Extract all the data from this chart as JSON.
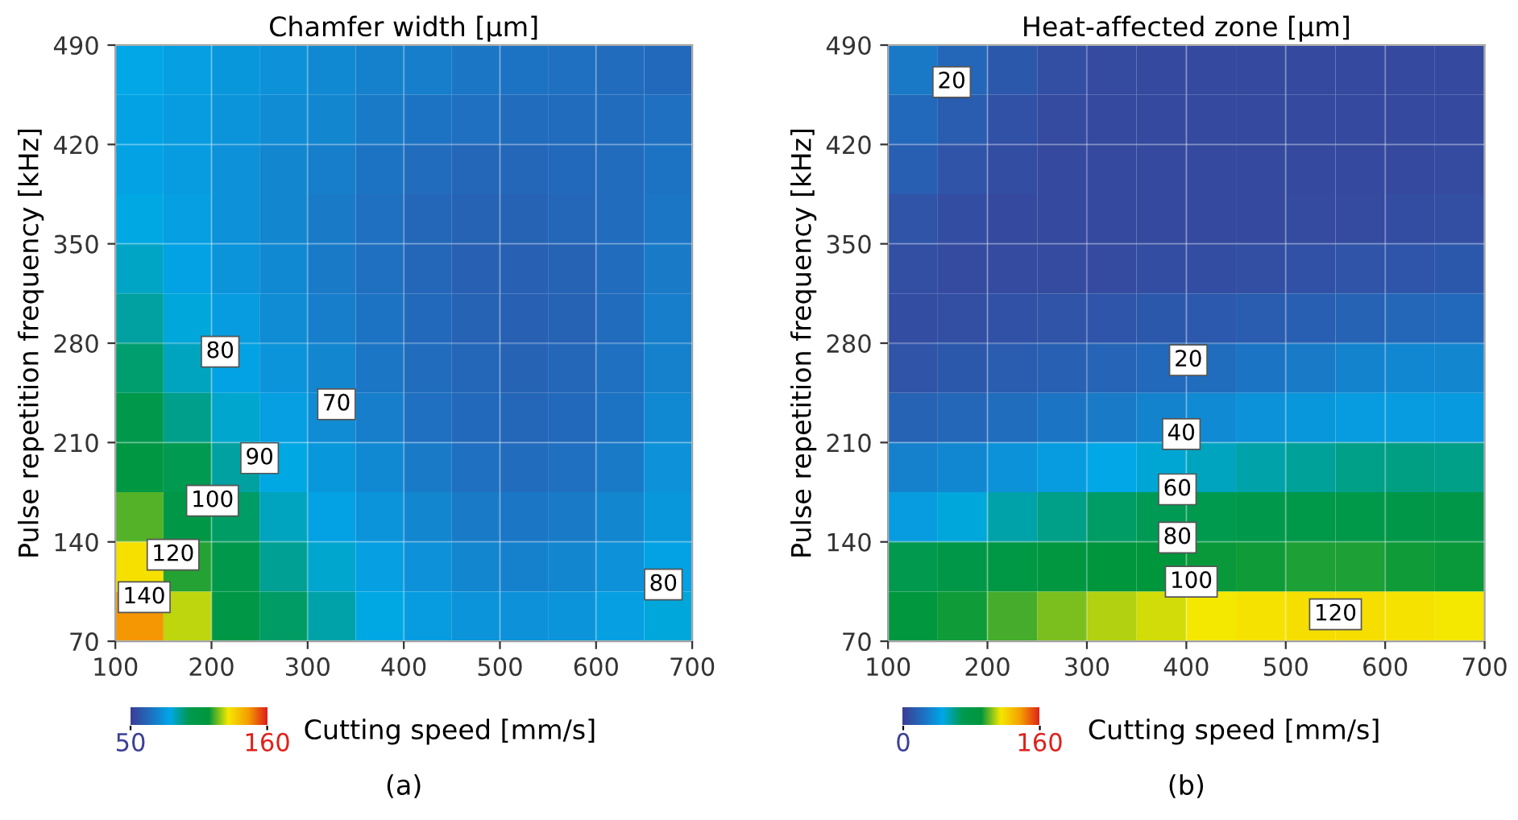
{
  "chart_data": [
    {
      "type": "heatmap",
      "title": "Chamfer width [µm]",
      "xlabel": "Cutting speed [mm/s]",
      "ylabel": "Pulse repetition frequency [kHz]",
      "xlim": [
        100,
        700
      ],
      "xticks": [
        100,
        200,
        300,
        400,
        500,
        600,
        700
      ],
      "ylim": [
        70,
        490
      ],
      "yticks": [
        70,
        140,
        210,
        280,
        350,
        420,
        490
      ],
      "grid": true,
      "clim": [
        50,
        160
      ],
      "cticks": [
        50,
        160
      ],
      "colors": [
        "#3b3f96",
        "#1f6fc0",
        "#00a8e8",
        "#009a50",
        "#00963c",
        "#f5e800",
        "#f5a000",
        "#e0201a"
      ],
      "cells": [
        [
          81,
          79,
          77,
          75,
          73,
          71,
          70,
          68,
          67,
          66,
          65,
          64
        ],
        [
          80,
          78,
          76,
          74,
          72,
          69,
          67,
          66,
          65,
          65,
          65,
          66
        ],
        [
          80,
          78,
          75,
          72,
          70,
          67,
          65,
          63,
          63,
          64,
          65,
          67
        ],
        [
          82,
          79,
          75,
          72,
          69,
          66,
          63,
          62,
          62,
          63,
          65,
          68
        ],
        [
          85,
          80,
          76,
          73,
          69,
          66,
          63,
          61,
          61,
          62,
          65,
          69
        ],
        [
          89,
          83,
          78,
          74,
          70,
          67,
          64,
          62,
          61,
          62,
          65,
          70
        ],
        [
          94,
          86,
          80,
          76,
          72,
          68,
          65,
          63,
          62,
          63,
          66,
          71
        ],
        [
          100,
          91,
          84,
          79,
          74,
          70,
          66,
          64,
          63,
          64,
          67,
          73
        ],
        [
          108,
          97,
          89,
          82,
          77,
          73,
          69,
          66,
          65,
          66,
          69,
          75
        ],
        [
          118,
          105,
          95,
          86,
          80,
          76,
          72,
          69,
          68,
          69,
          72,
          77
        ],
        [
          130,
          115,
          100,
          90,
          84,
          79,
          75,
          72,
          71,
          72,
          75,
          80
        ],
        [
          145,
          125,
          105,
          95,
          88,
          82,
          78,
          76,
          75,
          76,
          79,
          83
        ]
      ],
      "annotations": [
        "80",
        "70",
        "90",
        "100",
        "120",
        "140",
        "80",
        "(a)"
      ]
    },
    {
      "type": "heatmap",
      "title": "Heat-affected zone [µm]",
      "xlabel": "Cutting speed [mm/s]",
      "ylabel": "Pulse repetition frequency [kHz]",
      "xlim": [
        100,
        700
      ],
      "xticks": [
        100,
        200,
        300,
        400,
        500,
        600,
        700
      ],
      "ylim": [
        70,
        490
      ],
      "yticks": [
        70,
        140,
        210,
        280,
        350,
        420,
        490
      ],
      "grid": true,
      "clim": [
        0,
        160
      ],
      "cticks": [
        0,
        160
      ],
      "colors": [
        "#3b3f96",
        "#1f6fc0",
        "#00a8e8",
        "#009a50",
        "#00963c",
        "#f5e800",
        "#f5a000",
        "#e0201a"
      ],
      "cells": [
        [
          27,
          19,
          12,
          8,
          6,
          5,
          5,
          5,
          5,
          5,
          5,
          5
        ],
        [
          20,
          14,
          9,
          6,
          5,
          5,
          5,
          5,
          5,
          5,
          5,
          5
        ],
        [
          15,
          10,
          7,
          5,
          5,
          5,
          5,
          5,
          5,
          5,
          5,
          6
        ],
        [
          10,
          7,
          5,
          5,
          5,
          5,
          5,
          5,
          6,
          6,
          7,
          8
        ],
        [
          8,
          6,
          6,
          6,
          6,
          7,
          7,
          8,
          9,
          10,
          11,
          12
        ],
        [
          7,
          8,
          9,
          10,
          11,
          12,
          13,
          14,
          15,
          17,
          19,
          20
        ],
        [
          10,
          12,
          14,
          16,
          18,
          20,
          22,
          25,
          28,
          31,
          33,
          32
        ],
        [
          17,
          19,
          22,
          25,
          28,
          31,
          34,
          37,
          39,
          41,
          41,
          40
        ],
        [
          30,
          33,
          37,
          41,
          45,
          49,
          52,
          55,
          58,
          60,
          61,
          60
        ],
        [
          41,
          48,
          55,
          60,
          65,
          68,
          71,
          73,
          75,
          76,
          77,
          77
        ],
        [
          72,
          77,
          82,
          86,
          89,
          91,
          92,
          93,
          94,
          94,
          93,
          92
        ],
        [
          88,
          93,
          98,
          103,
          108,
          111,
          114,
          116,
          117,
          117,
          116,
          114
        ]
      ],
      "annotations": [
        "20",
        "20",
        "40",
        "60",
        "80",
        "100",
        "120",
        "(b)"
      ]
    }
  ]
}
